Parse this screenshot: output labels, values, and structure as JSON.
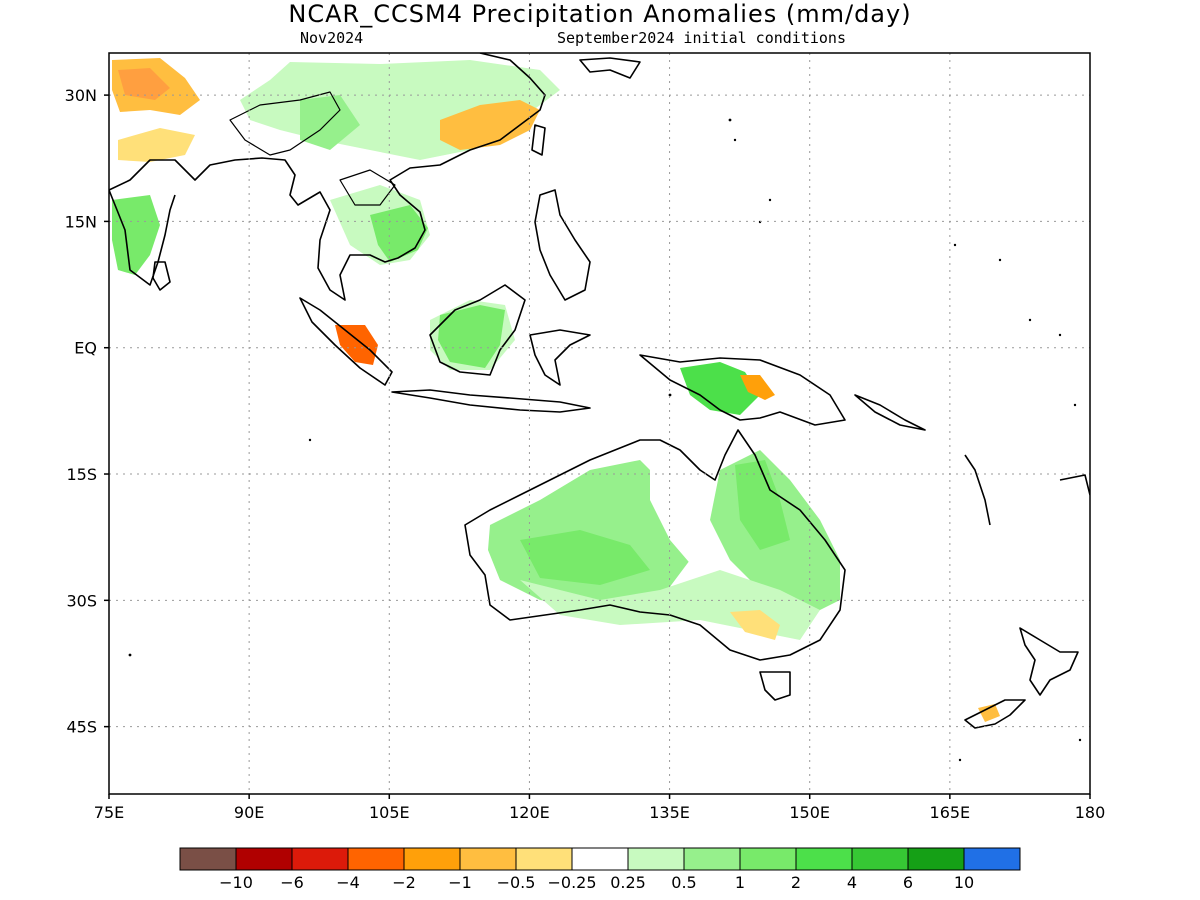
{
  "title": "NCAR_CCSM4 Precipitation Anomalies (mm/day)",
  "subtitle_left": "Nov2024",
  "subtitle_right": "September2024 initial conditions",
  "map": {
    "lon_range": [
      75,
      180
    ],
    "lat_range": [
      -53,
      35
    ],
    "lon_ticks": [
      {
        "value": 75,
        "label": "75E"
      },
      {
        "value": 90,
        "label": "90E"
      },
      {
        "value": 105,
        "label": "105E"
      },
      {
        "value": 120,
        "label": "120E"
      },
      {
        "value": 135,
        "label": "135E"
      },
      {
        "value": 150,
        "label": "150E"
      },
      {
        "value": 165,
        "label": "165E"
      },
      {
        "value": 180,
        "label": "180"
      }
    ],
    "lat_ticks": [
      {
        "value": 30,
        "label": "30N"
      },
      {
        "value": 15,
        "label": "15N"
      },
      {
        "value": 0,
        "label": "EQ"
      },
      {
        "value": -15,
        "label": "15S"
      },
      {
        "value": -30,
        "label": "30S"
      },
      {
        "value": -45,
        "label": "45S"
      }
    ],
    "grid": "dotted"
  },
  "colorbar": {
    "colors": [
      "#7a4f46",
      "#b00000",
      "#dc1a0a",
      "#ff6400",
      "#ffa00a",
      "#ffbe40",
      "#ffe079",
      "#ffffff",
      "#c8fac0",
      "#96f08c",
      "#78ea6a",
      "#4ce04a",
      "#36c834",
      "#15a016",
      "#2070e6"
    ],
    "labels": [
      "-10",
      "-6",
      "-4",
      "-2",
      "-1",
      "-0.5",
      "-0.25",
      "0.25",
      "0.5",
      "1",
      "2",
      "4",
      "6",
      "10"
    ]
  },
  "anomalies": [
    {
      "region": "north-india-himalaya",
      "level": "-1",
      "color": "#ffbe40"
    },
    {
      "region": "central-india",
      "level": "-0.5",
      "color": "#ffe079"
    },
    {
      "region": "east-china",
      "level": "-0.5",
      "color": "#ffbe40"
    },
    {
      "region": "sumatra",
      "level": "-2",
      "color": "#ff6400"
    },
    {
      "region": "new-guinea-east",
      "level": "-1",
      "color": "#ffa00a"
    },
    {
      "region": "south-india",
      "level": "1",
      "color": "#78ea6a"
    },
    {
      "region": "indochina",
      "level": "1",
      "color": "#78ea6a"
    },
    {
      "region": "borneo",
      "level": "1",
      "color": "#78ea6a"
    },
    {
      "region": "new-guinea-west",
      "level": "1",
      "color": "#78ea6a"
    },
    {
      "region": "western-australia",
      "level": "0.5",
      "color": "#96f08c"
    },
    {
      "region": "eastern-australia",
      "level": "0.5",
      "color": "#96f08c"
    },
    {
      "region": "se-australia",
      "level": "-0.5",
      "color": "#ffe079"
    },
    {
      "region": "new-zealand",
      "level": "-0.5",
      "color": "#ffbe40"
    }
  ]
}
